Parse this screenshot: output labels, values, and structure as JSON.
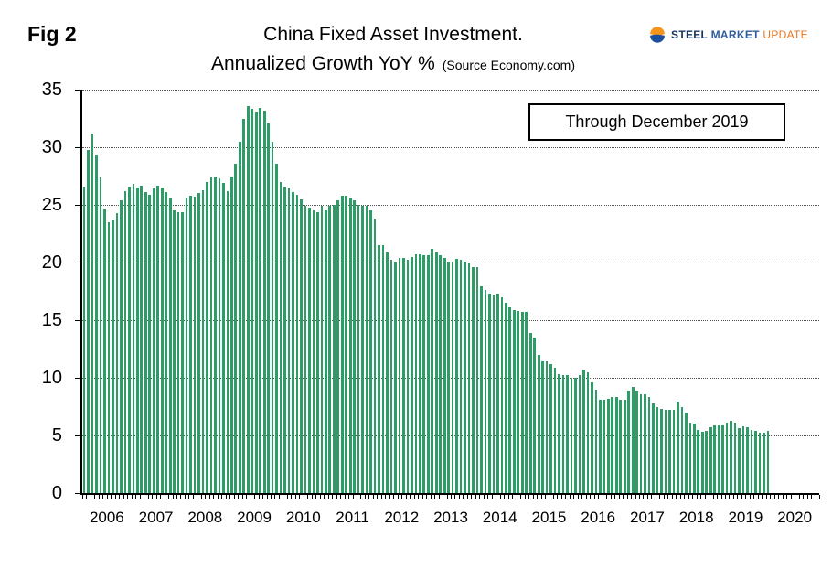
{
  "figure": {
    "label": "Fig 2"
  },
  "title": {
    "line1": "China Fixed Asset Investment.",
    "line2": "Annualized Growth YoY %",
    "source": "(Source Economy.com)"
  },
  "logo": {
    "words": [
      "STEEL",
      "MARKET",
      "UPDATE"
    ],
    "navy": "#17365d",
    "blue": "#2f5d9e",
    "orange": "#e87722"
  },
  "annotation": {
    "text": "Through December 2019"
  },
  "chart_data": {
    "type": "bar",
    "title": "China Fixed Asset Investment. Annualized Growth YoY %",
    "subtitle": "Annualized Growth YoY %",
    "source": "Economy.com",
    "xlabel": "",
    "ylabel": "",
    "ylim": [
      0,
      35
    ],
    "yticks": [
      0,
      5,
      10,
      15,
      20,
      25,
      30,
      35
    ],
    "grid": "horizontal-dotted",
    "legend": "none",
    "bar_color": "#2e9c67",
    "frequency": "monthly",
    "axis_years": [
      "2006",
      "2007",
      "2008",
      "2009",
      "2010",
      "2011",
      "2012",
      "2013",
      "2014",
      "2015",
      "2016",
      "2017",
      "2018",
      "2019",
      "2020"
    ],
    "years": [
      {
        "year": "2006",
        "values": [
          26.6,
          29.8,
          31.2,
          29.4,
          27.4,
          24.6,
          23.5,
          23.7,
          24.3,
          25.4,
          26.2,
          26.6
        ]
      },
      {
        "year": "2007",
        "values": [
          26.8,
          26.5,
          26.7,
          26.1,
          25.9,
          26.4,
          26.7,
          26.5,
          26.1,
          25.6,
          24.5,
          24.4
        ]
      },
      {
        "year": "2008",
        "values": [
          24.4,
          25.6,
          25.8,
          25.7,
          26.0,
          26.3,
          27.0,
          27.4,
          27.5,
          27.3,
          26.9,
          26.2
        ]
      },
      {
        "year": "2009",
        "values": [
          27.5,
          28.6,
          30.5,
          32.5,
          33.6,
          33.3,
          33.1,
          33.4,
          33.2,
          32.1,
          30.5,
          28.6
        ]
      },
      {
        "year": "2010",
        "values": [
          27.0,
          26.6,
          26.4,
          26.1,
          25.9,
          25.5,
          24.9,
          24.8,
          24.5,
          24.4,
          24.9,
          24.5
        ]
      },
      {
        "year": "2011",
        "values": [
          24.9,
          25.0,
          25.4,
          25.8,
          25.8,
          25.6,
          25.4,
          25.0,
          24.9,
          24.9,
          24.5,
          23.8
        ]
      },
      {
        "year": "2012",
        "values": [
          21.5,
          21.5,
          20.9,
          20.2,
          20.1,
          20.4,
          20.4,
          20.2,
          20.5,
          20.7,
          20.7,
          20.6
        ]
      },
      {
        "year": "2013",
        "values": [
          20.6,
          21.2,
          20.9,
          20.6,
          20.4,
          20.1,
          20.1,
          20.3,
          20.2,
          20.1,
          19.9,
          19.6
        ]
      },
      {
        "year": "2014",
        "values": [
          19.6,
          17.9,
          17.6,
          17.3,
          17.2,
          17.3,
          17.0,
          16.5,
          16.1,
          15.9,
          15.8,
          15.7
        ]
      },
      {
        "year": "2015",
        "values": [
          15.7,
          13.9,
          13.5,
          12.0,
          11.4,
          11.4,
          11.2,
          10.9,
          10.3,
          10.2,
          10.2,
          10.0
        ]
      },
      {
        "year": "2016",
        "values": [
          10.0,
          10.2,
          10.7,
          10.5,
          9.6,
          9.0,
          8.1,
          8.1,
          8.2,
          8.3,
          8.3,
          8.1
        ]
      },
      {
        "year": "2017",
        "values": [
          8.1,
          8.9,
          9.2,
          8.9,
          8.6,
          8.6,
          8.3,
          7.8,
          7.5,
          7.3,
          7.2,
          7.2
        ]
      },
      {
        "year": "2018",
        "values": [
          7.2,
          7.9,
          7.5,
          7.0,
          6.1,
          6.0,
          5.5,
          5.3,
          5.4,
          5.7,
          5.9,
          5.9
        ]
      },
      {
        "year": "2019",
        "values": [
          5.9,
          6.1,
          6.3,
          6.1,
          5.6,
          5.8,
          5.7,
          5.5,
          5.4,
          5.2,
          5.2,
          5.4
        ]
      }
    ]
  }
}
